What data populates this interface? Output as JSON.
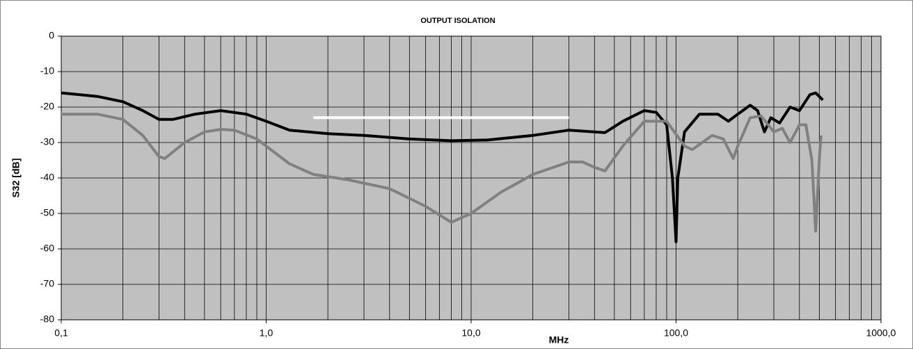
{
  "chart_data": {
    "type": "line",
    "title": "OUTPUT ISOLATION",
    "x_label": "MHz",
    "y_label": "S32 [dB]",
    "log_x": true,
    "grid": true,
    "background": "#c0c0c0",
    "xlim": [
      0.1,
      1000
    ],
    "xticks": [
      {
        "value": 0.1,
        "label": "0,1"
      },
      {
        "value": 1,
        "label": "1,0"
      },
      {
        "value": 10,
        "label": "10,0"
      },
      {
        "value": 100,
        "label": "100,0"
      },
      {
        "value": 1000,
        "label": "1000,0"
      }
    ],
    "ylim": [
      -80,
      0
    ],
    "yticks": [
      -80,
      -70,
      -60,
      -50,
      -40,
      -30,
      -20,
      -10,
      0
    ],
    "series": [
      {
        "color": "#000000",
        "x": [
          0.1,
          0.15,
          0.2,
          0.25,
          0.3,
          0.35,
          0.45,
          0.6,
          0.8,
          1.0,
          1.3,
          2,
          3,
          5,
          8,
          12,
          20,
          30,
          40,
          45,
          55,
          70,
          80,
          90,
          96,
          100,
          102,
          110,
          130,
          160,
          180,
          200,
          230,
          250,
          270,
          290,
          320,
          360,
          400,
          450,
          480,
          520
        ],
        "values": [
          -16,
          -17,
          -18.5,
          -21,
          -23.5,
          -23.5,
          -22,
          -21,
          -22,
          -24,
          -26.5,
          -27.5,
          -28,
          -29,
          -29.5,
          -29.3,
          -28,
          -26.5,
          -27,
          -27.2,
          -24,
          -21,
          -21.5,
          -25,
          -40,
          -58,
          -40,
          -27,
          -22,
          -22,
          -24,
          -22,
          -19.5,
          -21,
          -27,
          -23,
          -24.5,
          -20,
          -21,
          -16.5,
          -16,
          -18
        ]
      },
      {
        "color": "#808080",
        "x": [
          0.1,
          0.15,
          0.2,
          0.25,
          0.3,
          0.32,
          0.4,
          0.5,
          0.6,
          0.7,
          0.9,
          1.0,
          1.3,
          1.7,
          2.5,
          4,
          6,
          8,
          10,
          14,
          20,
          30,
          35,
          40,
          45,
          55,
          70,
          90,
          110,
          120,
          150,
          170,
          190,
          200,
          230,
          260,
          300,
          330,
          360,
          400,
          430,
          460,
          480,
          500,
          510
        ],
        "values": [
          -22,
          -22,
          -23.5,
          -28,
          -34,
          -34.5,
          -30,
          -27,
          -26.3,
          -26.5,
          -29,
          -31,
          -36,
          -39,
          -40.5,
          -43,
          -48,
          -52.5,
          -50,
          -44,
          -39,
          -35.5,
          -35.5,
          -37,
          -38,
          -31,
          -24,
          -24,
          -31,
          -32,
          -28,
          -29,
          -34.5,
          -31,
          -23,
          -22.5,
          -27,
          -26,
          -30,
          -25,
          -25,
          -35,
          -55,
          -35,
          -28
        ]
      },
      {
        "color": "#ffffff",
        "x": [
          1.7,
          30
        ],
        "values": [
          -23,
          -23
        ]
      }
    ]
  }
}
